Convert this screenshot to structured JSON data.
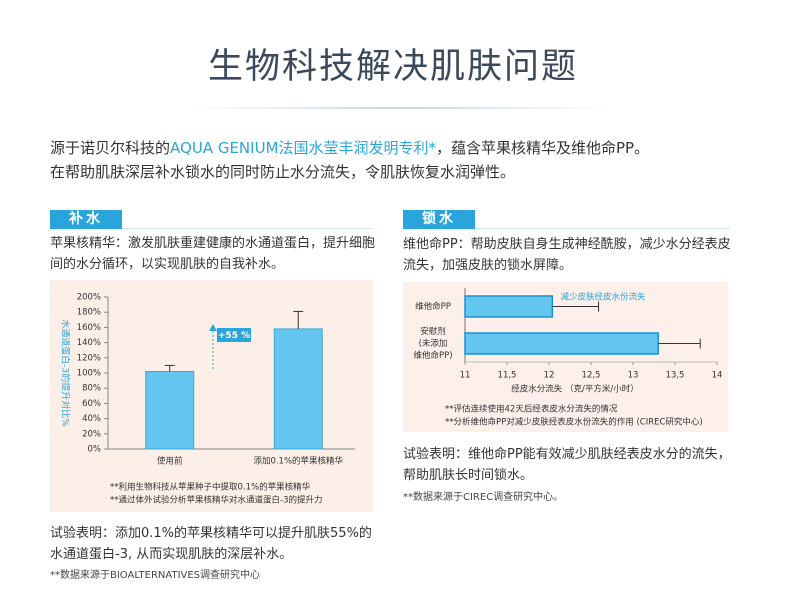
{
  "header": {
    "title": "生物科技解决肌肤问题"
  },
  "intro": {
    "line1_start": "源于诺贝尔科技的",
    "highlight": "AQUA GENIUM法国水莹丰润发明专利*",
    "line1_end": "，蕴含苹果核精华及维他命PP。",
    "line2": "在帮助肌肤深层补水锁水的同时防止水分流失，令肌肤恢复水润弹性。"
  },
  "sections": [
    {
      "tab": "补水",
      "description": "苹果核精华：激发肌肤重建健康的水通道蛋白，提升细胞间的水分循环，以实现肌肤的自我补水。",
      "conclusion": "试验表明：添加0.1%的苹果核精华可以提升肌肤55%的水通道蛋白-3, 从而实现肌肤的深层补水。",
      "source": "**数据来源于BIOALTERNATIVES调查研究中心"
    },
    {
      "tab": "锁水",
      "description": "维他命PP：帮助皮肤自身生成神经酰胺，减少水分经表皮流失，加强皮肤的锁水屏障。",
      "conclusion": "试验表明：维他命PP能有效减少肌肤经表皮水分的流失，帮助肌肤长时间锁水。",
      "source": "**数据来源于CIREC调查研究中心。"
    }
  ],
  "chart_data": [
    {
      "type": "bar",
      "categories": [
        "使用前",
        "添加0.1%的苹果核精华"
      ],
      "values": [
        102,
        158
      ],
      "errors": [
        8,
        23
      ],
      "color": "#63c6ef",
      "ylabel": "水通道蛋白-3的提升对比%",
      "ylim": [
        0,
        200
      ],
      "yticks": [
        {
          "value": 0,
          "label": "0%"
        },
        {
          "value": 20,
          "label": "20%"
        },
        {
          "value": 40,
          "label": "40%"
        },
        {
          "value": 60,
          "label": "60%"
        },
        {
          "value": 80,
          "label": "80%"
        },
        {
          "value": 100,
          "label": "100%"
        },
        {
          "value": 120,
          "label": "120%"
        },
        {
          "value": 140,
          "label": "140%"
        },
        {
          "value": 160,
          "label": "160%"
        },
        {
          "value": 180,
          "label": "180%"
        },
        {
          "value": 200,
          "label": "200%"
        }
      ],
      "grid": false,
      "annotation": "+55 %",
      "notes": [
        "**利用生物科技从苹果种子中提取0.1%的苹果核精华",
        "**通过体外试验分析苹果核精华对水通道蛋白-3的提升力"
      ]
    },
    {
      "type": "bar",
      "orientation": "horizontal",
      "categories": [
        "维他命PP",
        "安慰剂\n(未添加\n维他命PP)"
      ],
      "values": [
        12.04,
        13.3
      ],
      "errors": [
        0.55,
        0.5
      ],
      "color": "#63c6ef",
      "xlabel": "经皮水分流失 （克/平方米/小时）",
      "xlim": [
        11,
        14
      ],
      "xticks": [
        11,
        {
          "value": 11.5,
          "label": "11,5"
        },
        12,
        {
          "value": 12.5,
          "label": "12,5"
        },
        13,
        {
          "value": 13.5,
          "label": "13,5"
        },
        14
      ],
      "grid": false,
      "annotation": "减少皮肤经皮水份流失",
      "notes": [
        "**评估连续使用42天后经表皮水分流失的情况",
        "**分析维他命PP对减少皮肤经表皮水份流失的作用 (CIREC研究中心)"
      ]
    }
  ]
}
